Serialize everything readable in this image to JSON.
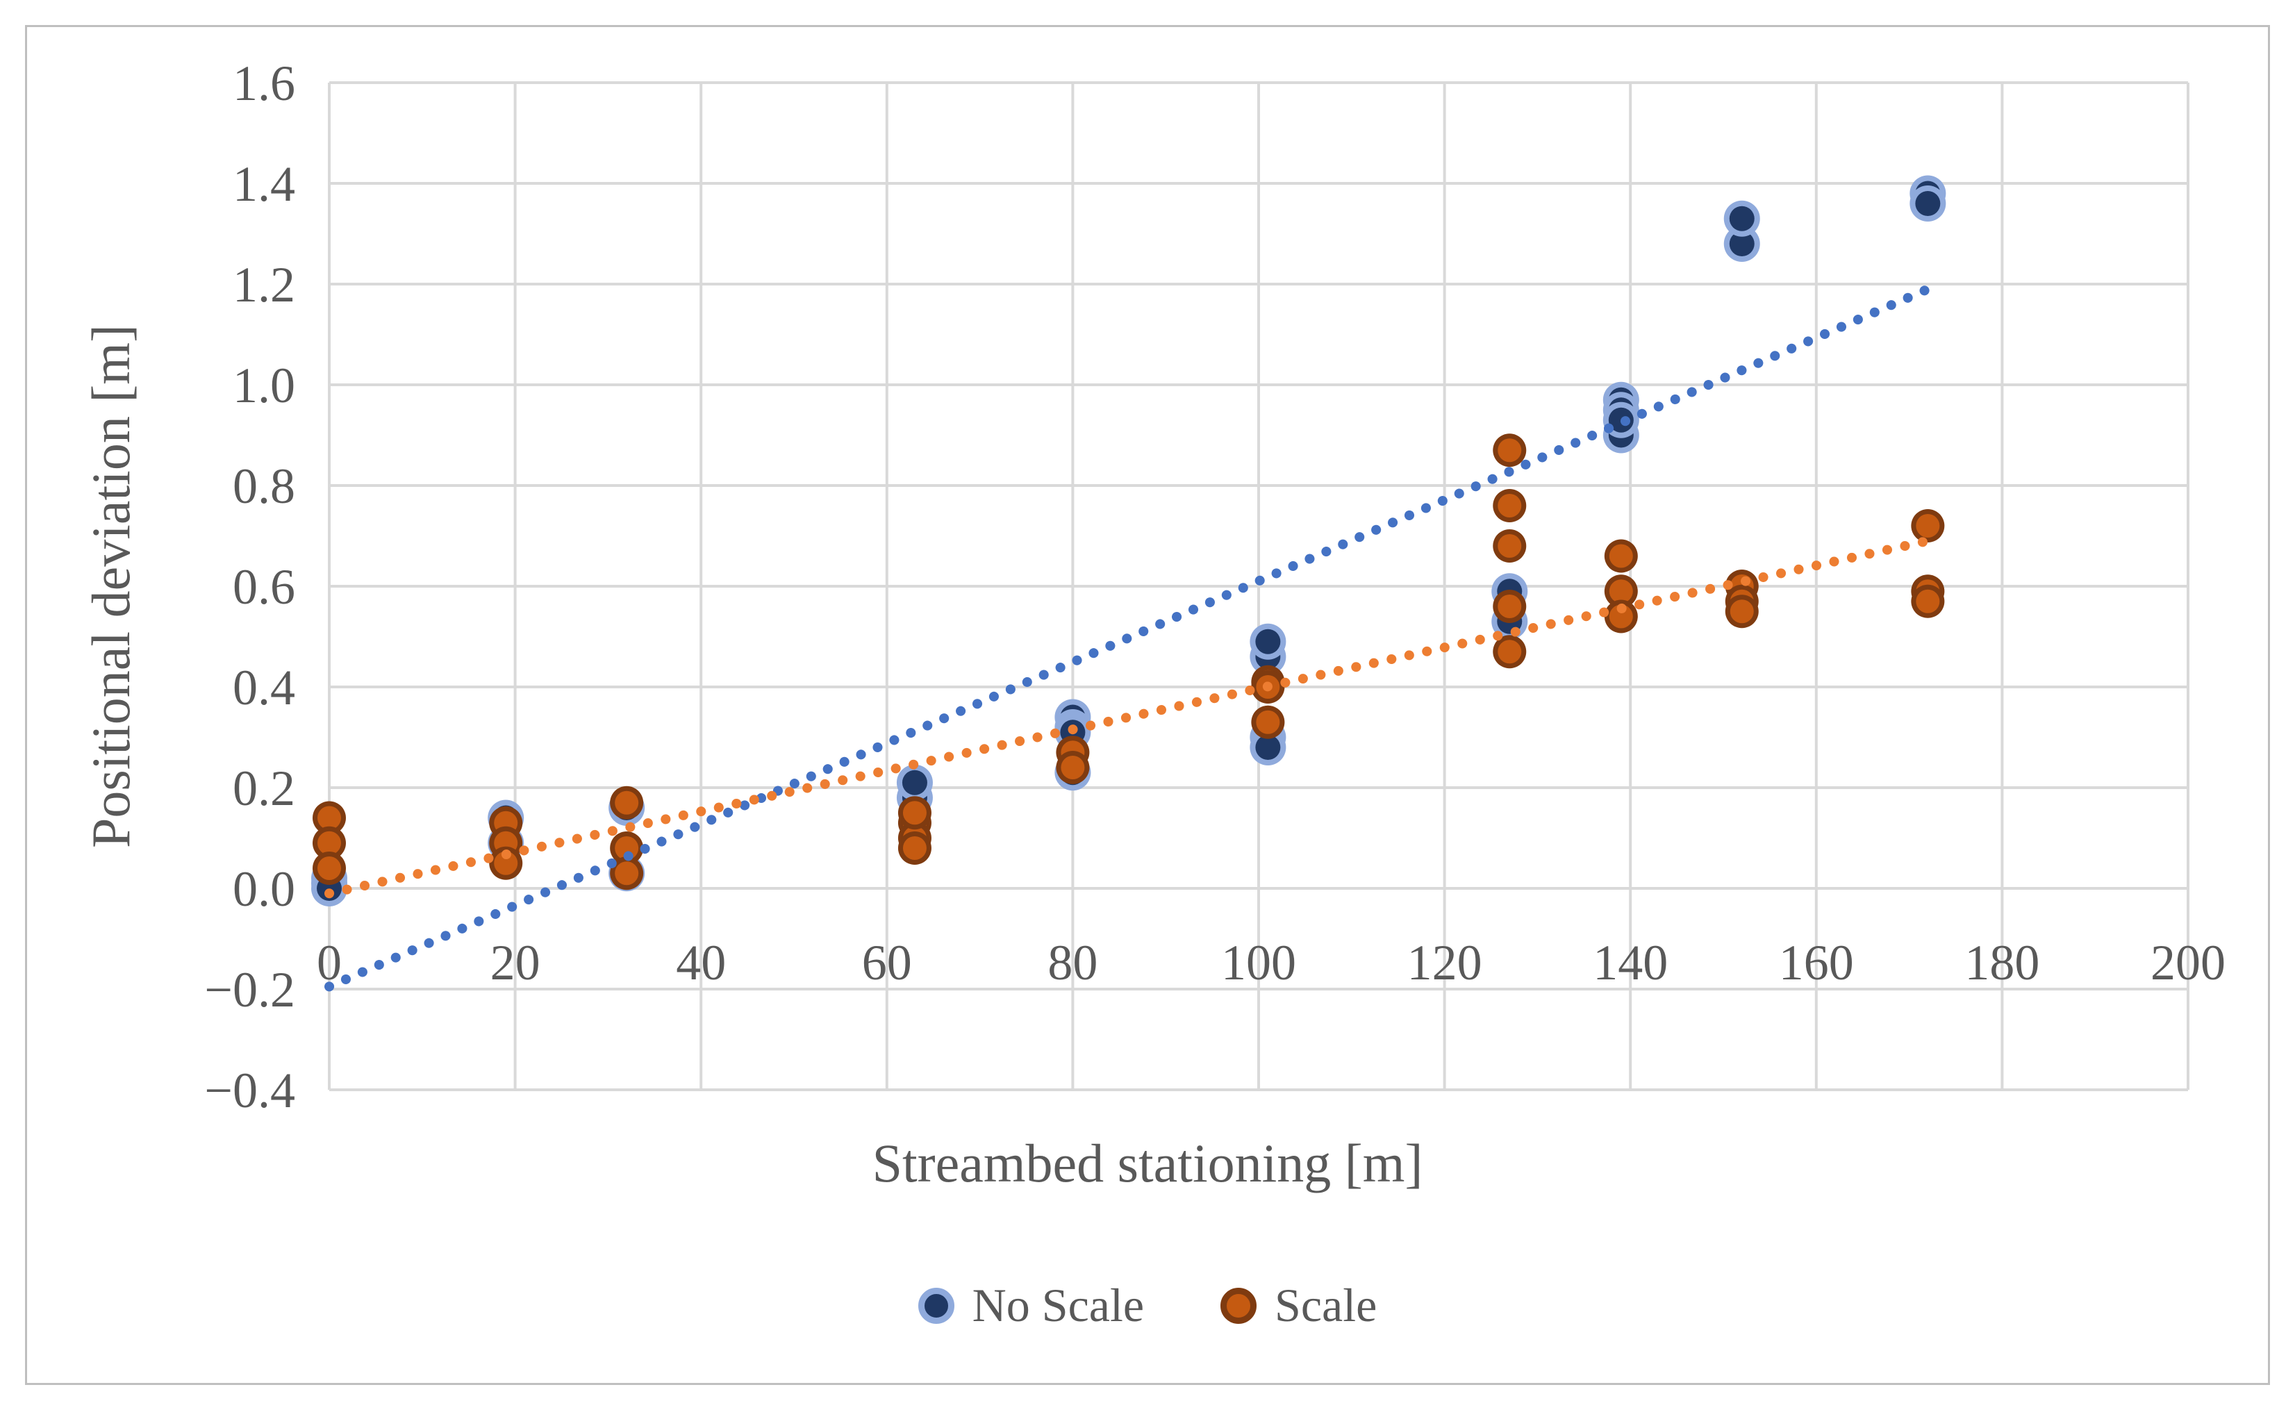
{
  "figure": {
    "x_axis_title": "Streambed stationing [m]",
    "y_axis_title": "Positional deviation [m]"
  },
  "legend": {
    "items": [
      {
        "label": "No Scale"
      },
      {
        "label": "Scale"
      }
    ]
  },
  "colors": {
    "no_scale_fill": "#1F3864",
    "no_scale_ring": "#8FAADC",
    "scale_fill": "#C55A11",
    "scale_ring": "#7F3B10",
    "no_scale_trend": "#4472C4",
    "scale_trend": "#ED7D31",
    "gridline": "#D9D9D9",
    "text": "#595959",
    "chart_border": "#BFBFBF",
    "background": "#FFFFFF"
  },
  "chart_data": {
    "type": "scatter",
    "title": "",
    "xlabel": "Streambed stationing [m]",
    "ylabel": "Positional deviation [m]",
    "xlim": [
      0,
      200
    ],
    "ylim": [
      -0.4,
      1.6
    ],
    "x_ticks": [
      0,
      20,
      40,
      60,
      80,
      100,
      120,
      140,
      160,
      180,
      200
    ],
    "y_ticks": [
      -0.4,
      -0.2,
      0.0,
      0.2,
      0.4,
      0.6,
      0.8,
      1.0,
      1.2,
      1.4,
      1.6
    ],
    "grid": true,
    "legend_position": "bottom",
    "series": [
      {
        "name": "No Scale",
        "points": [
          [
            0,
            0.02
          ],
          [
            0,
            0.01
          ],
          [
            0,
            0.0
          ],
          [
            19,
            0.14
          ],
          [
            19,
            0.09
          ],
          [
            32,
            0.16
          ],
          [
            32,
            0.03
          ],
          [
            63,
            0.18
          ],
          [
            63,
            0.21
          ],
          [
            80,
            0.34
          ],
          [
            80,
            0.32
          ],
          [
            80,
            0.31
          ],
          [
            80,
            0.23
          ],
          [
            101,
            0.46
          ],
          [
            101,
            0.49
          ],
          [
            101,
            0.3
          ],
          [
            101,
            0.28
          ],
          [
            127,
            0.59
          ],
          [
            127,
            0.53
          ],
          [
            139,
            0.97
          ],
          [
            139,
            0.95
          ],
          [
            139,
            0.9
          ],
          [
            139,
            0.93
          ],
          [
            152,
            1.28
          ],
          [
            152,
            1.33
          ],
          [
            172,
            1.38
          ],
          [
            172,
            1.36
          ]
        ]
      },
      {
        "name": "Scale",
        "points": [
          [
            0,
            0.14
          ],
          [
            0,
            0.09
          ],
          [
            0,
            0.04
          ],
          [
            19,
            0.13
          ],
          [
            19,
            0.09
          ],
          [
            19,
            0.05
          ],
          [
            32,
            0.17
          ],
          [
            32,
            0.08
          ],
          [
            32,
            0.03
          ],
          [
            63,
            0.13
          ],
          [
            63,
            0.1
          ],
          [
            63,
            0.15
          ],
          [
            63,
            0.08
          ],
          [
            80,
            0.27
          ],
          [
            80,
            0.24
          ],
          [
            101,
            0.41
          ],
          [
            101,
            0.4
          ],
          [
            101,
            0.33
          ],
          [
            127,
            0.87
          ],
          [
            127,
            0.76
          ],
          [
            127,
            0.68
          ],
          [
            127,
            0.56
          ],
          [
            127,
            0.47
          ],
          [
            139,
            0.66
          ],
          [
            139,
            0.59
          ],
          [
            139,
            0.54
          ],
          [
            152,
            0.6
          ],
          [
            152,
            0.57
          ],
          [
            152,
            0.55
          ],
          [
            172,
            0.72
          ],
          [
            172,
            0.59
          ],
          [
            172,
            0.57
          ]
        ]
      }
    ],
    "trendlines": [
      {
        "series": "No Scale",
        "style": "dotted",
        "from": [
          0,
          -0.195
        ],
        "to": [
          172,
          1.19
        ]
      },
      {
        "series": "Scale",
        "style": "dotted",
        "from": [
          0,
          -0.01
        ],
        "to": [
          172,
          0.69
        ]
      }
    ]
  }
}
